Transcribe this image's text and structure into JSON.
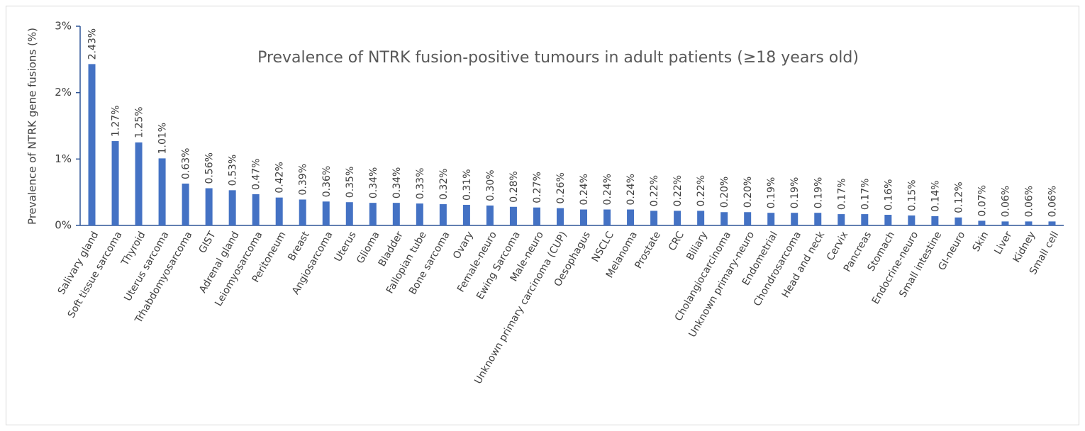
{
  "chart_data": {
    "type": "bar",
    "title": "Prevalence of NTRK fusion-positive tumours in adult patients (≥18 years old)",
    "y_label": "Prevalence of NTRK gene fusions (%)",
    "categories": [
      "Salivary gland",
      "Soft tissue sarcoma",
      "Thyroid",
      "Uterus sarcoma",
      "Trhabdomyosarcoma",
      "GIST",
      "Adrenal gland",
      "Leiomyosarcoma",
      "Peritoneum",
      "Breast",
      "Angiosarcoma",
      "Uterus",
      "Glioma",
      "Bladder",
      "Fallopian tube",
      "Bone sarcoma",
      "Ovary",
      "Female-neuro",
      "Ewing Sarcoma",
      "Male-neuro",
      "Unknown primary carcinoma (CUP)",
      "Oesophagus",
      "NSCLC",
      "Melanoma",
      "Prostate",
      "CRC",
      "Biliary",
      "Cholangiocarcinoma",
      "Unknown primary-neuro",
      "Endometrial",
      "Chondrosarcoma",
      "Head and neck",
      "Cervix",
      "Pancreas",
      "Stomach",
      "Endocrine-neuro",
      "Small intestine",
      "GI-neuro",
      "Skin",
      "Liver",
      "Kidney",
      "Small cell"
    ],
    "values": [
      2.43,
      1.27,
      1.25,
      1.01,
      0.63,
      0.56,
      0.53,
      0.47,
      0.42,
      0.39,
      0.36,
      0.35,
      0.34,
      0.34,
      0.33,
      0.32,
      0.31,
      0.3,
      0.28,
      0.27,
      0.26,
      0.24,
      0.24,
      0.24,
      0.22,
      0.22,
      0.22,
      0.2,
      0.2,
      0.19,
      0.19,
      0.19,
      0.17,
      0.17,
      0.16,
      0.15,
      0.14,
      0.12,
      0.07,
      0.06,
      0.06,
      0.06
    ],
    "value_labels": [
      "2.43%",
      "1.27%",
      "1.25%",
      "1.01%",
      "0.63%",
      "0.56%",
      "0.53%",
      "0.47%",
      "0.42%",
      "0.39%",
      "0.36%",
      "0.35%",
      "0.34%",
      "0.34%",
      "0.33%",
      "0.32%",
      "0.31%",
      "0.30%",
      "0.28%",
      "0.27%",
      "0.26%",
      "0.24%",
      "0.24%",
      "0.24%",
      "0.22%",
      "0.22%",
      "0.22%",
      "0.20%",
      "0.20%",
      "0.19%",
      "0.19%",
      "0.19%",
      "0.17%",
      "0.17%",
      "0.16%",
      "0.15%",
      "0.14%",
      "0.12%",
      "0.07%",
      "0.06%",
      "0.06%",
      "0.06%"
    ],
    "color": "#4472c4",
    "ylim": [
      0,
      3
    ],
    "yticks": [
      {
        "value": 0,
        "label": "0%"
      },
      {
        "value": 1,
        "label": "1%"
      },
      {
        "value": 2,
        "label": "2%"
      },
      {
        "value": 3,
        "label": "3%"
      }
    ],
    "grid": false
  }
}
